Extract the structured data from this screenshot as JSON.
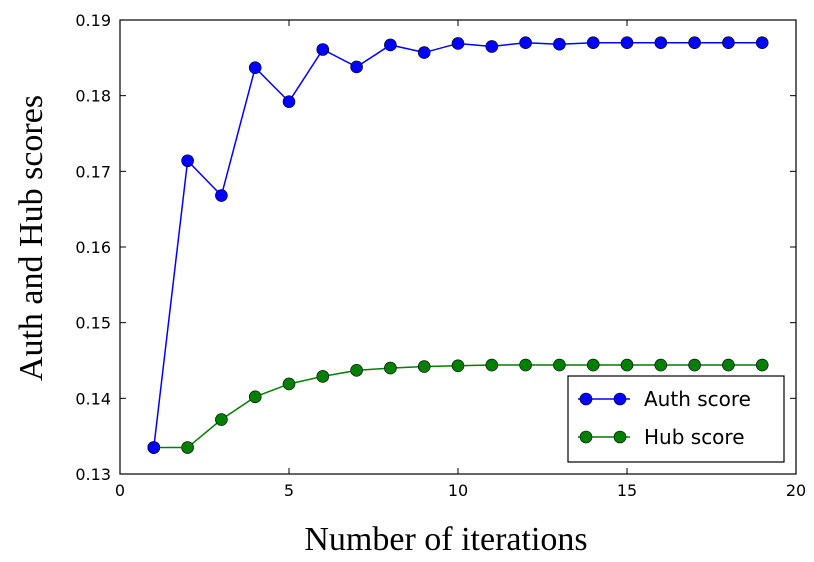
{
  "chart_data": {
    "type": "line",
    "title": "",
    "xlabel": "Number of iterations",
    "ylabel": "Auth and Hub scores",
    "xlim": [
      0,
      20
    ],
    "ylim": [
      0.13,
      0.19
    ],
    "xticks": [
      0,
      5,
      10,
      15,
      20
    ],
    "xtick_labels": [
      "0",
      "5",
      "10",
      "15",
      "20"
    ],
    "yticks": [
      0.13,
      0.14,
      0.15,
      0.16,
      0.17,
      0.18,
      0.19
    ],
    "ytick_labels": [
      "0.13",
      "0.14",
      "0.15",
      "0.16",
      "0.17",
      "0.18",
      "0.19"
    ],
    "grid": false,
    "legend_position": "lower-right",
    "x": [
      1,
      2,
      3,
      4,
      5,
      6,
      7,
      8,
      9,
      10,
      11,
      12,
      13,
      14,
      15,
      16,
      17,
      18,
      19
    ],
    "series": [
      {
        "name": "Auth score",
        "color": "#0000ff",
        "values": [
          0.1335,
          0.1714,
          0.1668,
          0.1837,
          0.1792,
          0.1861,
          0.1838,
          0.1867,
          0.1857,
          0.1869,
          0.1865,
          0.187,
          0.1868,
          0.187,
          0.187,
          0.187,
          0.187,
          0.187,
          0.187
        ]
      },
      {
        "name": "Hub score",
        "color": "#007f00",
        "values": [
          0.1335,
          0.1335,
          0.1372,
          0.1402,
          0.1419,
          0.1429,
          0.1437,
          0.144,
          0.1442,
          0.1443,
          0.1444,
          0.1444,
          0.1444,
          0.1444,
          0.1444,
          0.1444,
          0.1444,
          0.1444,
          0.1444
        ]
      }
    ]
  }
}
